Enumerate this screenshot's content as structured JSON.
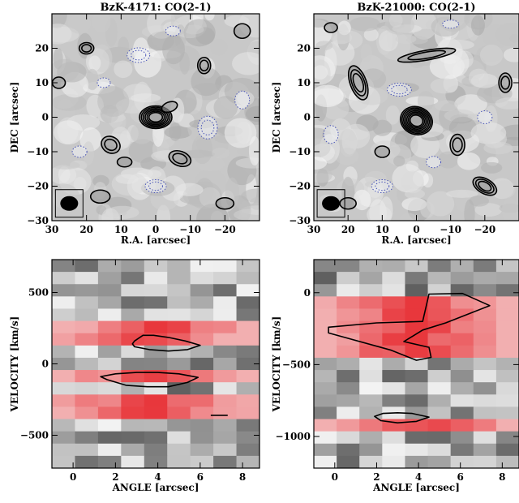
{
  "figure": {
    "panels": [
      "BzK-4171 CO(2-1) map",
      "BzK-21000 CO(2-1) map",
      "BzK-4171 PV diagram",
      "BzK-21000 PV diagram"
    ]
  },
  "colors": {
    "background_gray": "#c8c8c8",
    "positive_contour": "#000000",
    "negative_contour": "#4a55b8",
    "emission_red": "#e8373c",
    "beam_fill": "#000000"
  },
  "chart_data": [
    {
      "type": "heatmap",
      "title": "BzK-4171: CO(2-1)",
      "xlabel": "R.A. [arcsec]",
      "ylabel": "DEC [arcsec]",
      "xlim": [
        30,
        -30
      ],
      "ylim": [
        -30,
        30
      ],
      "x_ticks": [
        30,
        20,
        10,
        0,
        -10,
        -20
      ],
      "y_ticks": [
        20,
        10,
        0,
        -10,
        -20,
        -30
      ],
      "x_tick_labels": [
        "30",
        "20",
        "10",
        "0",
        "−10",
        "−20"
      ],
      "y_tick_labels": [
        "20",
        "10",
        "0",
        "−10",
        "−20",
        "−30"
      ],
      "source_peak": [
        0,
        0
      ],
      "beam_position": [
        25,
        -25
      ],
      "positive_contours": "solid black",
      "negative_contours": "dotted blue",
      "beam_inset": true
    },
    {
      "type": "heatmap",
      "title": "BzK-21000: CO(2-1)",
      "xlabel": "R.A. [arcsec]",
      "ylabel": "DEC [arcsec]",
      "xlim": [
        30,
        -30
      ],
      "ylim": [
        -30,
        30
      ],
      "x_ticks": [
        30,
        20,
        10,
        0,
        -10,
        -20
      ],
      "y_ticks": [
        20,
        10,
        0,
        -10,
        -20,
        -30
      ],
      "x_tick_labels": [
        "30",
        "20",
        "10",
        "0",
        "−10",
        "−20"
      ],
      "y_tick_labels": [
        "20",
        "10",
        "0",
        "−10",
        "−20",
        "−30"
      ],
      "source_peak": [
        0,
        0
      ],
      "beam_position": [
        25,
        -25
      ],
      "positive_contours": "solid black",
      "negative_contours": "dotted blue",
      "beam_inset": true
    },
    {
      "type": "heatmap",
      "title": "",
      "xlabel": "ANGLE [arcsec]",
      "ylabel": "VELOCITY [km/s]",
      "xlim": [
        -1,
        8.8
      ],
      "ylim": [
        -730,
        730
      ],
      "x_ticks": [
        0,
        2,
        4,
        6,
        8
      ],
      "y_ticks": [
        500,
        0,
        -500
      ],
      "x_tick_labels": [
        "0",
        "2",
        "4",
        "6",
        "8"
      ],
      "y_tick_labels": [
        "500",
        "0",
        "−500"
      ],
      "emission_bands_velocity": [
        [
          260,
          110
        ],
        [
          -50,
          -170
        ],
        [
          -230,
          -370
        ]
      ],
      "contours": [
        {
          "x": [
            2.9,
            3.3,
            3.8,
            4.5,
            5.3,
            6.0,
            5.4,
            4.5,
            3.6,
            2.9,
            2.8,
            2.9
          ],
          "y": [
            160,
            200,
            200,
            185,
            160,
            130,
            100,
            90,
            100,
            120,
            140,
            160
          ]
        },
        {
          "x": [
            1.3,
            2.0,
            3.0,
            4.0,
            5.0,
            5.9,
            5.4,
            4.5,
            3.5,
            2.5,
            1.6,
            1.3
          ],
          "y": [
            -90,
            -70,
            -60,
            -60,
            -70,
            -95,
            -130,
            -160,
            -160,
            -150,
            -110,
            -90
          ]
        },
        {
          "x": [
            6.5,
            7.3
          ],
          "y": [
            -360,
            -360
          ]
        }
      ]
    },
    {
      "type": "heatmap",
      "title": "",
      "xlabel": "ANGLE [arcsec]",
      "ylabel": "VELOCITY [km/s]",
      "xlim": [
        -1,
        8.8
      ],
      "ylim": [
        -1220,
        230
      ],
      "x_ticks": [
        0,
        2,
        4,
        6,
        8
      ],
      "y_ticks": [
        0,
        -500,
        -1000
      ],
      "x_tick_labels": [
        "0",
        "2",
        "4",
        "6",
        "8"
      ],
      "y_tick_labels": [
        "0",
        "−500",
        "−1000"
      ],
      "emission_bands_velocity": [
        [
          -30,
          -480
        ],
        [
          -850,
          -960
        ]
      ],
      "contours": [
        {
          "x": [
            -0.3,
            2.0,
            4.2,
            4.5,
            6.1,
            7.4,
            5.3,
            4.2,
            3.3,
            4.5,
            4.6,
            3.9,
            2.7,
            -0.3,
            -0.3
          ],
          "y": [
            -240,
            -210,
            -200,
            -10,
            -5,
            -90,
            -210,
            -260,
            -340,
            -380,
            -450,
            -470,
            -400,
            -280,
            -240
          ]
        },
        {
          "x": [
            1.9,
            2.3,
            3.0,
            3.7,
            4.5,
            3.9,
            3.0,
            2.2,
            1.9
          ],
          "y": [
            -860,
            -840,
            -835,
            -840,
            -865,
            -895,
            -905,
            -890,
            -860
          ]
        }
      ]
    }
  ]
}
